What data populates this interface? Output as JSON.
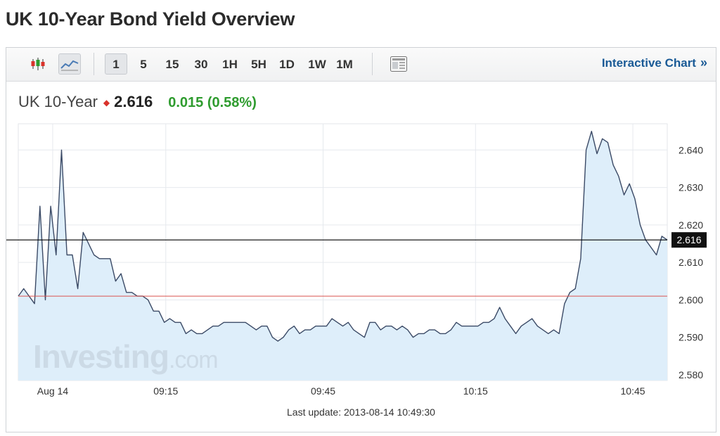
{
  "page": {
    "title": "UK 10-Year Bond Yield Overview"
  },
  "toolbar": {
    "chart_type_icons": [
      "candlestick-icon",
      "line-chart-icon"
    ],
    "active_chart_type": "line-chart-icon",
    "timeframes": [
      "1",
      "5",
      "15",
      "30",
      "1H",
      "5H",
      "1D",
      "1W",
      "1M"
    ],
    "active_timeframe": "1",
    "extra_icon": "layout-icon",
    "interactive_link": "Interactive Chart",
    "interactive_arrow": "»"
  },
  "quote": {
    "name": "UK 10-Year",
    "direction_icon": "down-arrow-icon",
    "price": "2.616",
    "change": "0.015 (0.58%)",
    "colors": {
      "change_up": "#2f9c2f",
      "direction": "#d9322b"
    }
  },
  "footer": {
    "last_update": "Last update: 2013-08-14 10:49:30"
  },
  "chart_data": {
    "type": "area",
    "watermark": "Investing.com",
    "x_tick_labels": [
      "Aug 14",
      "09:15",
      "09:45",
      "10:15",
      "10:45"
    ],
    "x_range": [
      0,
      132
    ],
    "x_tick_positions": [
      7,
      30,
      62,
      93,
      125
    ],
    "y_tick_labels": [
      "2.640",
      "2.630",
      "2.620",
      "2.610",
      "2.600",
      "2.590",
      "2.580"
    ],
    "ylim": [
      2.5785,
      2.647
    ],
    "y_ticks": [
      2.64,
      2.63,
      2.62,
      2.61,
      2.6,
      2.59,
      2.58
    ],
    "current_value": 2.616,
    "current_label": "2.616",
    "previous_close": 2.601,
    "grid": true,
    "colors": {
      "line": "#3b4a66",
      "fill": "#deeefa",
      "previous_close_line": "#d9534f",
      "current_line": "#000000",
      "grid": "#e6e9ee"
    },
    "series": [
      {
        "values": [
          2.601,
          2.603,
          2.601,
          2.599,
          2.625,
          2.6,
          2.625,
          2.612,
          2.64,
          2.612,
          2.612,
          2.603,
          2.618,
          2.615,
          2.612,
          2.611,
          2.611,
          2.611,
          2.605,
          2.607,
          2.602,
          2.602,
          2.601,
          2.601,
          2.6,
          2.597,
          2.597,
          2.594,
          2.595,
          2.594,
          2.594,
          2.591,
          2.592,
          2.591,
          2.591,
          2.592,
          2.593,
          2.593,
          2.594,
          2.594,
          2.594,
          2.594,
          2.594,
          2.593,
          2.592,
          2.593,
          2.593,
          2.59,
          2.589,
          2.59,
          2.592,
          2.593,
          2.591,
          2.592,
          2.592,
          2.593,
          2.593,
          2.593,
          2.595,
          2.594,
          2.593,
          2.594,
          2.592,
          2.591,
          2.59,
          2.594,
          2.594,
          2.592,
          2.593,
          2.593,
          2.592,
          2.593,
          2.592,
          2.59,
          2.591,
          2.591,
          2.592,
          2.592,
          2.591,
          2.591,
          2.592,
          2.594,
          2.593,
          2.593,
          2.593,
          2.593,
          2.594,
          2.594,
          2.595,
          2.598,
          2.595,
          2.593,
          2.591,
          2.593,
          2.594,
          2.595,
          2.593,
          2.592,
          2.591,
          2.592,
          2.591,
          2.599,
          2.602,
          2.603,
          2.611,
          2.64,
          2.645,
          2.639,
          2.643,
          2.642,
          2.636,
          2.633,
          2.628,
          2.631,
          2.627,
          2.62,
          2.616,
          2.614,
          2.612,
          2.617,
          2.616
        ]
      }
    ]
  }
}
